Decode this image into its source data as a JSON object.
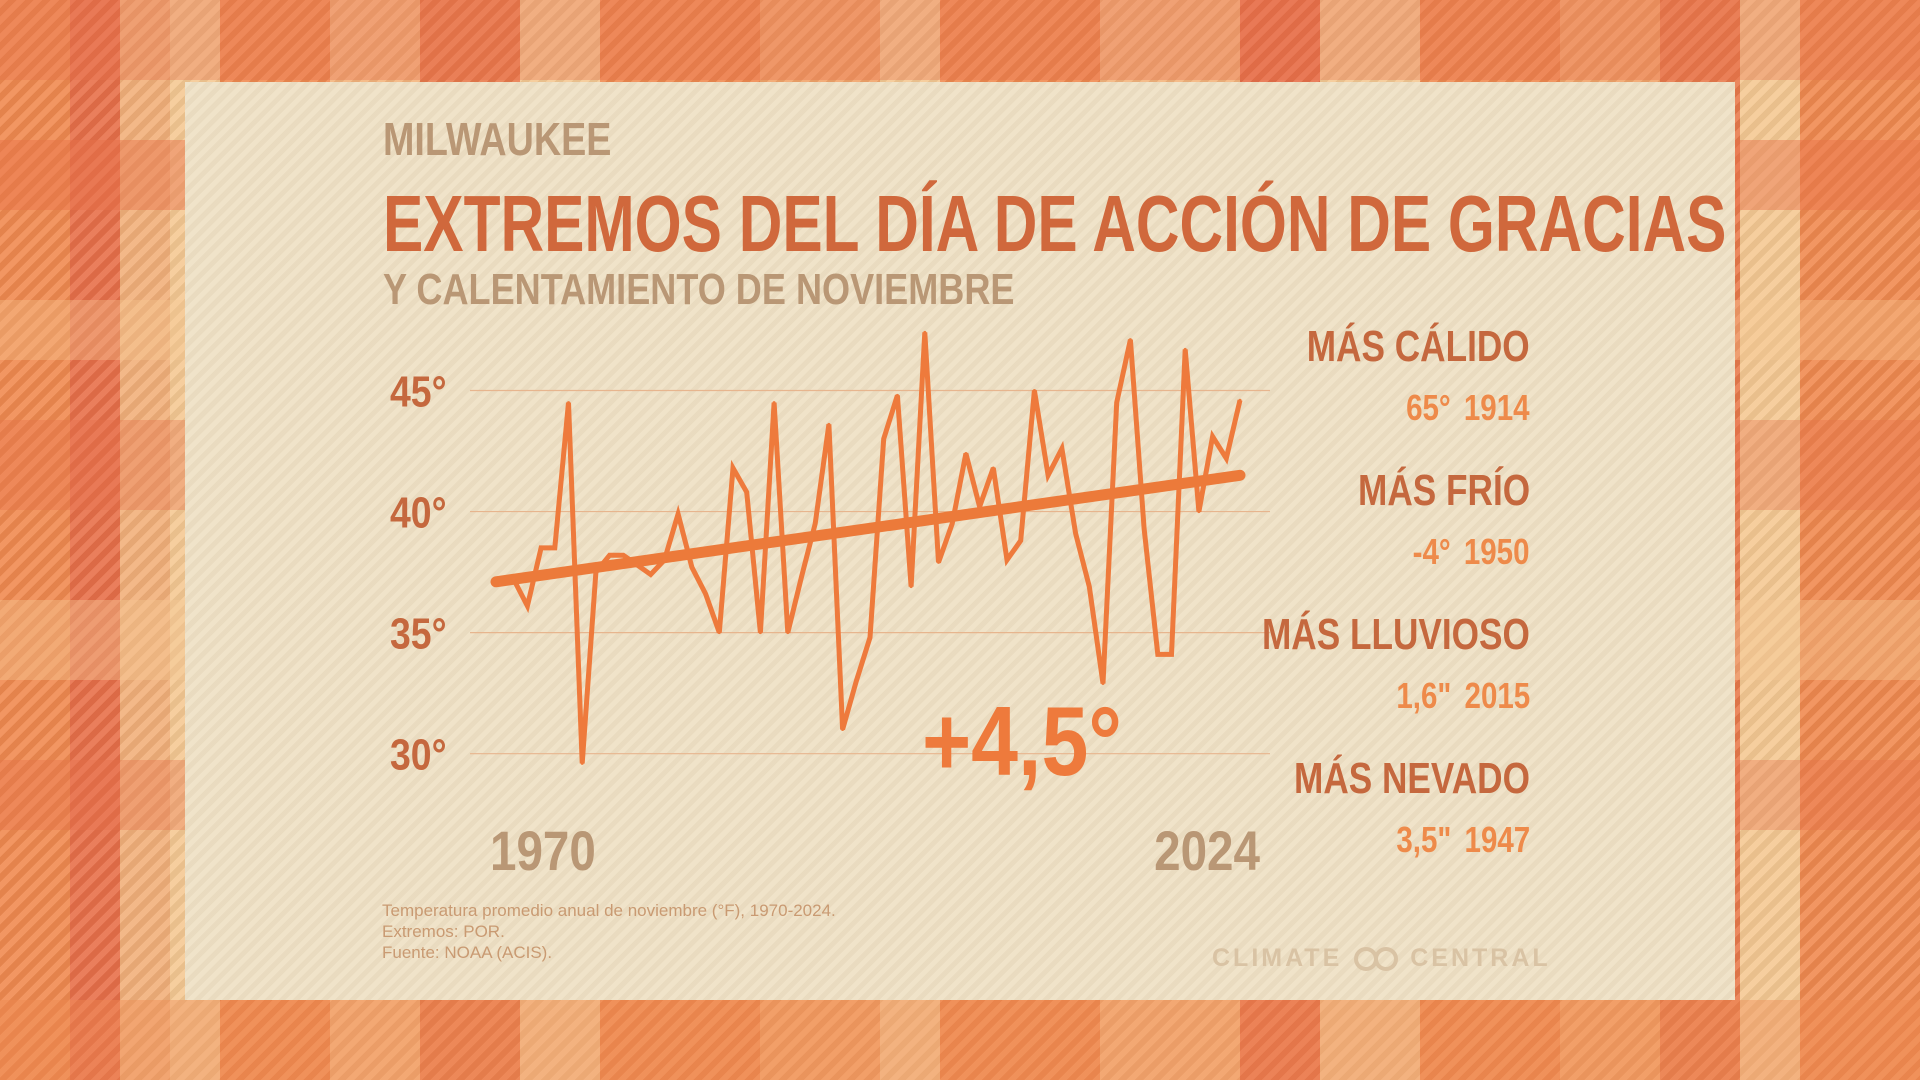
{
  "location": "MILWAUKEE",
  "title": "EXTREMOS DEL DÍA DE ACCIÓN DE GRACIAS",
  "subtitle": "Y CALENTAMIENTO DE NOVIEMBRE",
  "colors": {
    "accent": "#ee7a3c",
    "trend": "#ec7a3a",
    "title": "#d0683c",
    "muted": "#b99775",
    "panel": "#efe0c4"
  },
  "chart_data": {
    "type": "line",
    "title": "",
    "xlabel": "",
    "ylabel": "",
    "x_tick_labels": [
      "1970",
      "2024"
    ],
    "y_tick_labels": [
      "30°",
      "35°",
      "40°",
      "45°"
    ],
    "y_ticks": [
      30,
      35,
      40,
      45
    ],
    "xlim": [
      1970,
      2024
    ],
    "ylim": [
      28.5,
      47.5
    ],
    "grid": true,
    "legend": "none",
    "x": [
      1970,
      1971,
      1972,
      1973,
      1974,
      1975,
      1976,
      1977,
      1978,
      1979,
      1980,
      1981,
      1982,
      1983,
      1984,
      1985,
      1986,
      1987,
      1988,
      1989,
      1990,
      1991,
      1992,
      1993,
      1994,
      1995,
      1996,
      1997,
      1998,
      1999,
      2000,
      2001,
      2002,
      2003,
      2004,
      2005,
      2006,
      2007,
      2008,
      2009,
      2010,
      2011,
      2012,
      2013,
      2014,
      2015,
      2016,
      2017,
      2018,
      2019,
      2020,
      2021,
      2022,
      2023,
      2024
    ],
    "series": [
      {
        "values": [
          37.0,
          37.2,
          36.1,
          38.5,
          38.5,
          44.5,
          29.6,
          37.5,
          38.2,
          38.2,
          37.8,
          37.4,
          38.0,
          39.9,
          37.7,
          36.6,
          35.0,
          41.8,
          40.8,
          35.0,
          44.5,
          35.0,
          37.3,
          39.5,
          43.6,
          31.0,
          33.0,
          34.8,
          43.0,
          44.8,
          36.9,
          47.4,
          37.9,
          39.5,
          42.4,
          40.2,
          41.8,
          38.0,
          38.8,
          45.0,
          41.5,
          42.6,
          39.1,
          36.9,
          32.9,
          44.5,
          47.1,
          39.3,
          34.1,
          34.1,
          46.7,
          40.0,
          43.1,
          42.2,
          44.6
        ]
      }
    ],
    "trend": {
      "start": 37.1,
      "end": 41.5
    },
    "annotation": "+4,5°"
  },
  "extremes": [
    {
      "label": "MÁS CÁLIDO",
      "value": "65°",
      "year": "1914"
    },
    {
      "label": "MÁS FRÍO",
      "value": "-4°",
      "year": "1950"
    },
    {
      "label": "MÁS LLUVIOSO",
      "value": "1,6\"",
      "year": "2015"
    },
    {
      "label": "MÁS NEVADO",
      "value": "3,5\"",
      "year": "1947"
    }
  ],
  "footnote": [
    "Temperatura promedio anual de noviembre (°F), 1970-2024.",
    "Extremos: POR.",
    "Fuente: NOAA (ACIS)."
  ],
  "logo": {
    "left": "CLIMATE",
    "right": "CENTRAL",
    "icon": "infinity-rings-icon"
  }
}
